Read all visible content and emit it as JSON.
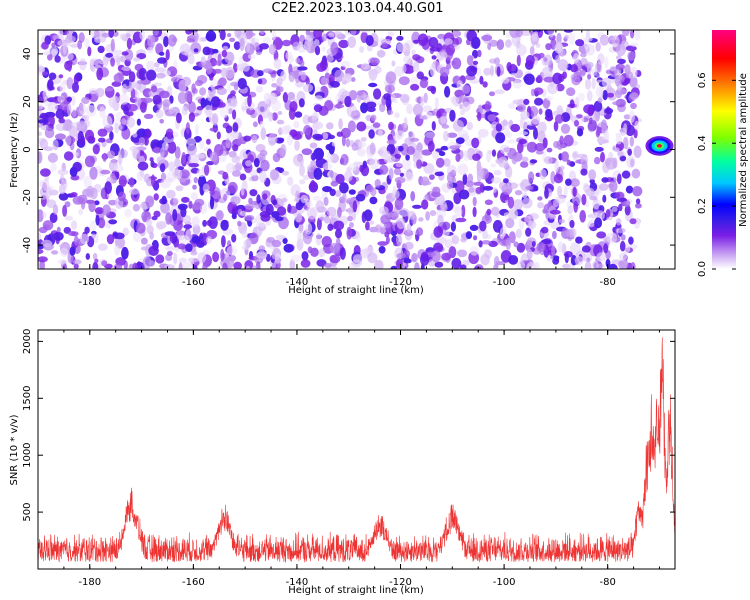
{
  "title": "C2E2.2023.103.04.40.G01",
  "chart_data": [
    {
      "type": "heatmap",
      "title": "C2E2.2023.103.04.40.G01",
      "xlabel": "Height of straight line (km)",
      "ylabel": "Frequency (Hz)",
      "xlim": [
        -190,
        -67
      ],
      "ylim": [
        -50,
        50
      ],
      "x_ticks": [
        -180,
        -160,
        -140,
        -120,
        -100,
        -80
      ],
      "y_ticks": [
        -40,
        -20,
        0,
        20,
        40
      ],
      "colorbar": {
        "label": "Normalized spectral amplitude",
        "range": [
          0,
          0.76
        ],
        "ticks": [
          0.0,
          0.2,
          0.4,
          0.6
        ],
        "tick_labels": [
          "0.0",
          "0.2",
          "0.4",
          "0.6"
        ],
        "colormap": [
          "#ffffff",
          "#c9a4f2",
          "#7a1ee6",
          "#3d1de6",
          "#0000ff",
          "#00c8ff",
          "#00ffa0",
          "#7fff00",
          "#ffff00",
          "#ff8000",
          "#ff0000",
          "#ff0080"
        ]
      },
      "background_noise": {
        "x_range": [
          -190,
          -74
        ],
        "y_range": [
          -50,
          50
        ],
        "level_range": [
          0.02,
          0.2
        ]
      },
      "strong_features": [
        {
          "x": -70,
          "y": 1.5,
          "peak": 0.72,
          "note": ""
        }
      ],
      "grid": false
    },
    {
      "type": "line",
      "title": "",
      "xlabel": "Height of straight line (km)",
      "ylabel": "SNR (10 * v/v)",
      "xlim": [
        -190,
        -67
      ],
      "ylim": [
        0,
        2100
      ],
      "x_ticks": [
        -180,
        -160,
        -140,
        -120,
        -100,
        -80
      ],
      "y_ticks": [
        500,
        1000,
        1500,
        2000
      ],
      "color": "#ee3333",
      "baseline": {
        "min": 60,
        "max": 330
      },
      "peaks": [
        {
          "x": -172,
          "y": 730
        },
        {
          "x": -154,
          "y": 580
        },
        {
          "x": -124,
          "y": 500
        },
        {
          "x": -110,
          "y": 580
        },
        {
          "x": -74,
          "y": 700
        },
        {
          "x": -72.5,
          "y": 1100
        },
        {
          "x": -71.5,
          "y": 1550
        },
        {
          "x": -70.5,
          "y": 1500
        },
        {
          "x": -69.5,
          "y": 2070
        },
        {
          "x": -68,
          "y": 1600
        }
      ],
      "grid": false
    }
  ]
}
